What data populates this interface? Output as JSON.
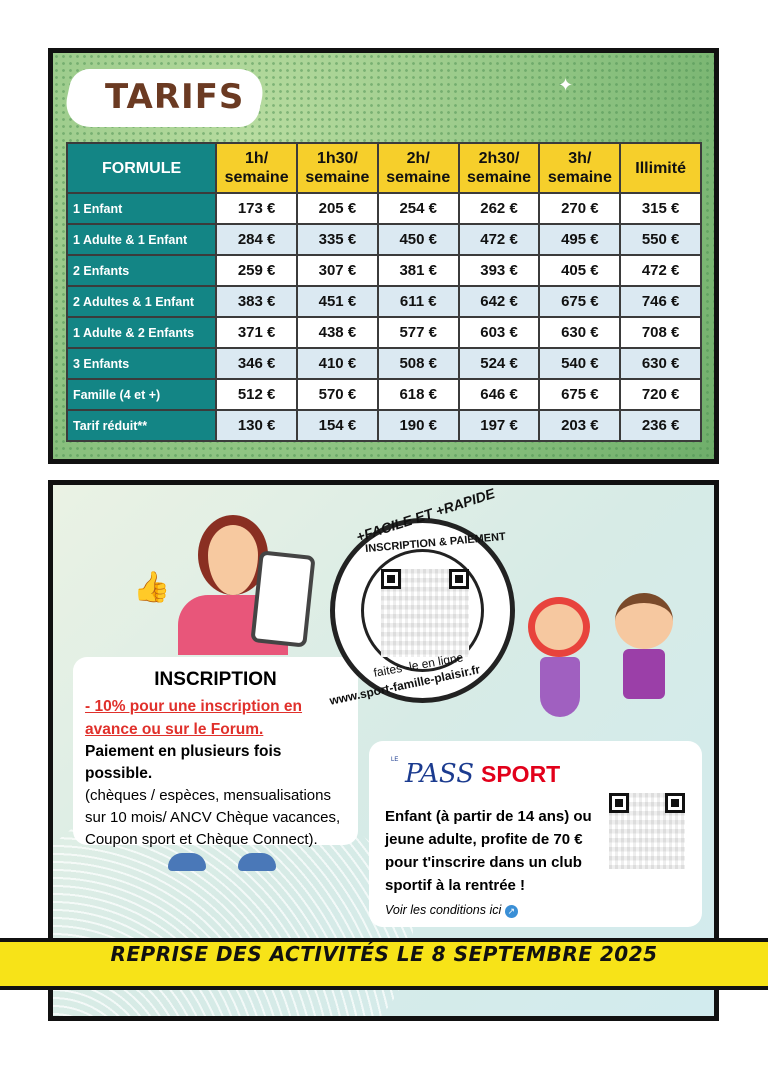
{
  "tarifs": {
    "title": "TARIFS",
    "headers": [
      "FORMULE",
      "1h/ semaine",
      "1h30/ semaine",
      "2h/ semaine",
      "2h30/ semaine",
      "3h/ semaine",
      "Illimité"
    ],
    "rows": [
      {
        "label": "1 Enfant",
        "prices": [
          "173 €",
          "205 €",
          "254 €",
          "262 €",
          "270 €",
          "315 €"
        ]
      },
      {
        "label": "1 Adulte & 1 Enfant",
        "prices": [
          "284 €",
          "335 €",
          "450 €",
          "472 €",
          "495 €",
          "550 €"
        ]
      },
      {
        "label": "2 Enfants",
        "prices": [
          "259 €",
          "307 €",
          "381 €",
          "393 €",
          "405 €",
          "472 €"
        ]
      },
      {
        "label": "2 Adultes & 1 Enfant",
        "prices": [
          "383 €",
          "451 €",
          "611 €",
          "642 €",
          "675 €",
          "746 €"
        ]
      },
      {
        "label": "1 Adulte & 2 Enfants",
        "prices": [
          "371 €",
          "438 €",
          "577 €",
          "603 €",
          "630 €",
          "708 €"
        ]
      },
      {
        "label": "3 Enfants",
        "prices": [
          "346 €",
          "410 €",
          "508 €",
          "524 €",
          "540 €",
          "630 €"
        ]
      },
      {
        "label": "Famille (4 et +)",
        "prices": [
          "512 €",
          "570 €",
          "618 €",
          "646 €",
          "675 €",
          "720 €"
        ]
      },
      {
        "label": "Tarif réduit**",
        "prices": [
          "130 €",
          "154 €",
          "190 €",
          "197 €",
          "203 €",
          "236 €"
        ]
      }
    ]
  },
  "stamp": {
    "top": "+FACILE ET +RAPIDE",
    "ring": "INSCRIPTION & PAIEMENT",
    "inner": "faites -le en ligne",
    "url": "www.sport-famille-plaisir.fr"
  },
  "inscription": {
    "title": "INSCRIPTION",
    "discount_line1": "- 10% pour une inscription en",
    "discount_line2": "avance ou sur le Forum.",
    "payment": "Paiement en plusieurs fois possible.",
    "details": [
      "(chèques / espèces, mensualisations",
      "sur 10 mois/ ANCV Chèque vacances,",
      "Coupon sport et Chèque Connect)."
    ]
  },
  "pass_sport": {
    "logo_le": "LE",
    "logo_pass": "PASS",
    "logo_sport": "SPORT",
    "lines": [
      "Enfant (à partir de 14 ans) ou",
      "jeune adulte, profite de 70 €",
      "pour t'inscrire dans un club",
      "sportif à la rentrée !"
    ],
    "link": "Voir les conditions ici",
    "colors": {
      "pass": "#1b3b8f",
      "sport": "#e2001a"
    }
  },
  "banner": "REPRISE DES ACTIVITÉS LE 8 SEPTEMBRE 2025",
  "colors": {
    "teal": "#138585",
    "yellow": "#f6cf2b",
    "brown": "#6b3a22",
    "banner": "#f7e318"
  }
}
